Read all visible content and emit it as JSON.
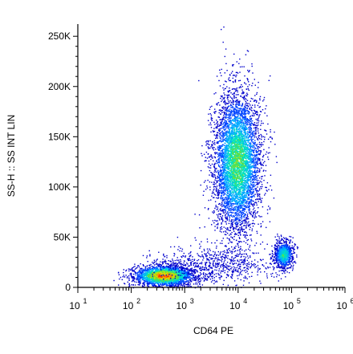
{
  "chart_data": {
    "type": "scatter",
    "title": "",
    "xlabel": "CD64 PE",
    "ylabel": "SS-H :: SS INT LIN",
    "x_scale": "log",
    "xlim": [
      10,
      1000000
    ],
    "ylim": [
      0,
      262144
    ],
    "y_ticks": [
      {
        "value": 0,
        "label": "0"
      },
      {
        "value": 50000,
        "label": "50K"
      },
      {
        "value": 100000,
        "label": "100K"
      },
      {
        "value": 150000,
        "label": "150K"
      },
      {
        "value": 200000,
        "label": "200K"
      },
      {
        "value": 250000,
        "label": "250K"
      }
    ],
    "x_ticks": [
      {
        "value": 10,
        "base": "10",
        "exp": "1"
      },
      {
        "value": 100,
        "base": "10",
        "exp": "2"
      },
      {
        "value": 1000,
        "base": "10",
        "exp": "3"
      },
      {
        "value": 10000,
        "base": "10",
        "exp": "4"
      },
      {
        "value": 100000,
        "base": "10",
        "exp": "5"
      },
      {
        "value": 1000000,
        "base": "10",
        "exp": "6"
      }
    ],
    "color_map": [
      "#0000cc",
      "#0044ff",
      "#00aaff",
      "#00e0c0",
      "#60e040",
      "#d0e000",
      "#ff9000",
      "#ff2000"
    ],
    "populations": [
      {
        "center_x": 400,
        "center_y": 12000,
        "spread_log_x": 0.28,
        "spread_y": 5000,
        "count": 2600,
        "peak": 1.0
      },
      {
        "center_x": 9500,
        "center_y": 125000,
        "spread_log_x": 0.22,
        "spread_y": 35000,
        "count": 5200,
        "peak": 0.65
      },
      {
        "center_x": 70000,
        "center_y": 33000,
        "spread_log_x": 0.09,
        "spread_y": 7000,
        "count": 900,
        "peak": 0.55
      },
      {
        "center_x": 3000,
        "center_y": 22000,
        "spread_log_x": 0.55,
        "spread_y": 9000,
        "count": 700,
        "peak": 0.1
      }
    ]
  }
}
